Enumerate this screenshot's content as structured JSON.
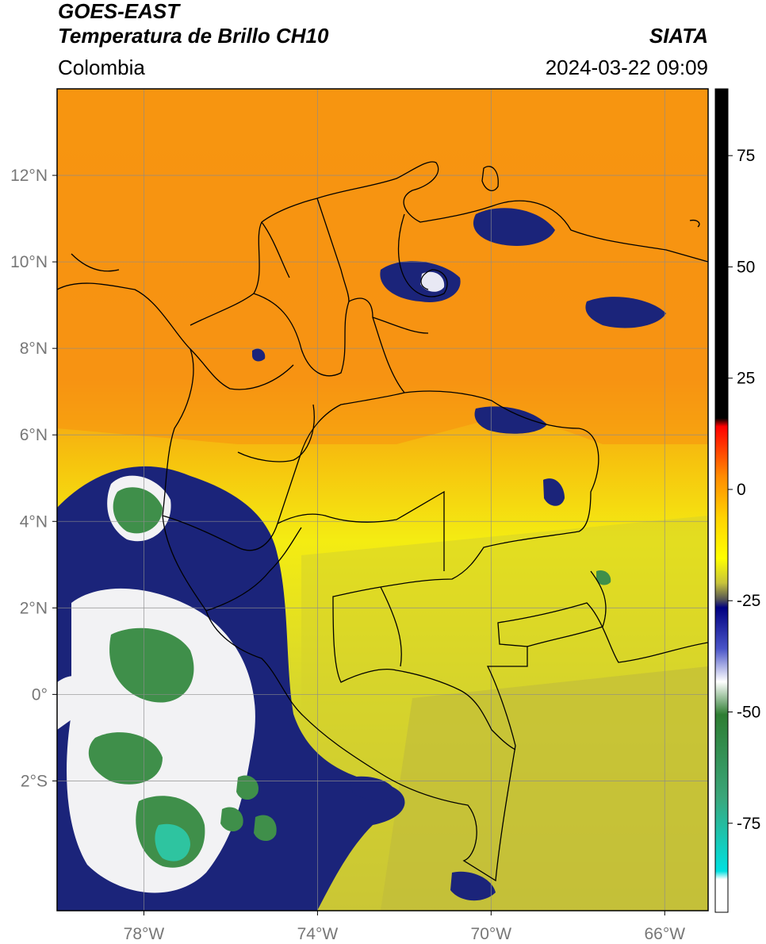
{
  "header": {
    "title_line1": "GOES-EAST",
    "title_line2": "Temperatura de Brillo CH10",
    "region": "Colombia",
    "brand": "SIATA",
    "timestamp": "2024-03-22 09:09"
  },
  "map": {
    "lon_range": [
      -80,
      -65
    ],
    "lat_range": [
      -5,
      14
    ],
    "lon_ticks": [
      {
        "value": -78,
        "label": "78°W"
      },
      {
        "value": -74,
        "label": "74°W"
      },
      {
        "value": -70,
        "label": "70°W"
      },
      {
        "value": -66,
        "label": "66°W"
      }
    ],
    "lat_ticks": [
      {
        "value": 12,
        "label": "12°N"
      },
      {
        "value": 10,
        "label": "10°N"
      },
      {
        "value": 8,
        "label": "8°N"
      },
      {
        "value": 6,
        "label": "6°N"
      },
      {
        "value": 4,
        "label": "4°N"
      },
      {
        "value": 2,
        "label": "2°N"
      },
      {
        "value": 0,
        "label": "0°"
      },
      {
        "value": -2,
        "label": "2°S"
      }
    ],
    "grid": true,
    "colors": {
      "warm": "#f7a21a",
      "mid": "#f3e21a",
      "cool": "#c9c43a",
      "cloud_blue": "#1a237e",
      "cloud_white": "#f2f2f2",
      "cloud_green": "#3f8f4a",
      "cloud_teal": "#2ec4a0"
    }
  },
  "colorbar": {
    "range": [
      -95,
      90
    ],
    "ticks": [
      {
        "value": 75,
        "label": "75"
      },
      {
        "value": 50,
        "label": "50"
      },
      {
        "value": 25,
        "label": "25"
      },
      {
        "value": 0,
        "label": "0"
      },
      {
        "value": -25,
        "label": "-25"
      },
      {
        "value": -50,
        "label": "-50"
      },
      {
        "value": -75,
        "label": "-75"
      }
    ]
  }
}
